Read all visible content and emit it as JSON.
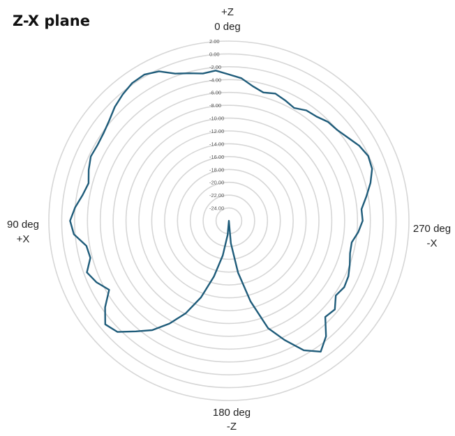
{
  "chart_data": {
    "type": "radar",
    "title": "Z-X plane",
    "direction_labels": {
      "top": [
        "+Z",
        "0 deg"
      ],
      "left": [
        "90 deg",
        "+X"
      ],
      "right": [
        "270 deg",
        "-X"
      ],
      "bottom": [
        "180 deg",
        "-Z"
      ]
    },
    "radial_ticks": [
      "2.00",
      "0.00",
      "-2.00",
      "-4.00",
      "-6.00",
      "-8.00",
      "-10.00",
      "-12.00",
      "-14.00",
      "-16.00",
      "-18.00",
      "-20.00",
      "-22.00",
      "-24.00"
    ],
    "rlim": [
      -26,
      2
    ],
    "angle_unit": "deg",
    "angle_direction": "counterclockwise",
    "zero_angle": "top",
    "grid": true,
    "series": [
      {
        "color": "#1f5c7a",
        "angles": [
          0,
          5,
          10,
          15,
          20,
          25,
          30,
          35,
          40,
          45,
          50,
          55,
          60,
          65,
          70,
          75,
          80,
          85,
          90,
          95,
          100,
          105,
          110,
          115,
          120,
          125,
          130,
          135,
          140,
          145,
          150,
          155,
          160,
          165,
          170,
          175,
          180,
          185,
          190,
          195,
          200,
          205,
          210,
          215,
          220,
          225,
          230,
          235,
          240,
          245,
          250,
          255,
          260,
          265,
          270,
          275,
          280,
          285,
          290,
          295,
          300,
          305,
          310,
          315,
          320,
          325,
          330,
          335,
          340,
          345,
          350,
          355
        ],
        "values": [
          -3.2,
          -2.5,
          -2.7,
          -2.2,
          -1.6,
          -0.3,
          0.3,
          0.2,
          -0.3,
          -0.9,
          -1.7,
          -2.2,
          -2.4,
          -2.3,
          -2.8,
          -3.4,
          -2.9,
          -2.0,
          -1.3,
          -1.8,
          -3.5,
          -3.7,
          -2.5,
          -3.3,
          -4.5,
          -2.5,
          -0.9,
          -1.5,
          -3.5,
          -5.2,
          -7.5,
          -10.1,
          -13.3,
          -17.0,
          -20.5,
          -23.8,
          -26.0,
          -22.5,
          -17.8,
          -13.0,
          -8.2,
          -5.5,
          -2.7,
          -1.1,
          -2.5,
          -4.8,
          -4.5,
          -5.7,
          -5.3,
          -5.5,
          -6.0,
          -6.5,
          -6.6,
          -5.8,
          -5.2,
          -5.3,
          -4.3,
          -3.2,
          -2.3,
          -2.1,
          -2.6,
          -3.4,
          -4.0,
          -4.2,
          -4.8,
          -5.0,
          -5.7,
          -5.3,
          -4.9,
          -5.3,
          -4.7,
          -3.7
        ]
      }
    ]
  }
}
